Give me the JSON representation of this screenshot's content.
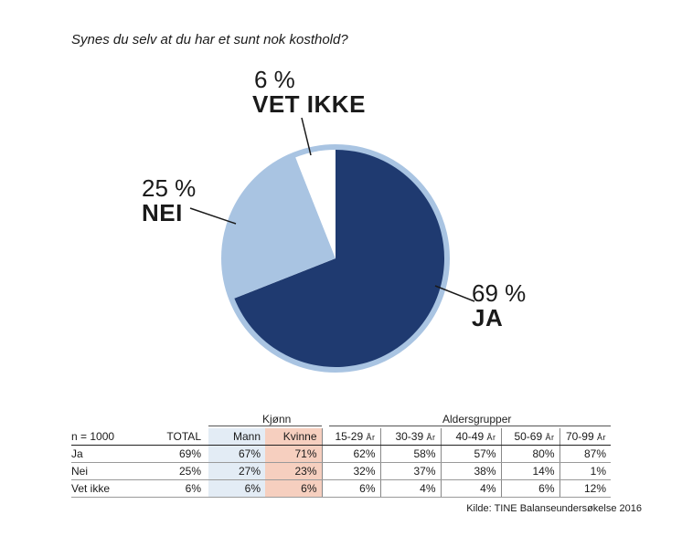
{
  "title": "Synes du selv at du har et sunt nok kosthold?",
  "chart_data": [
    {
      "type": "pie",
      "title": "Synes du selv at du har et sunt nok kosthold?",
      "slices": [
        {
          "label": "JA",
          "value": 69,
          "value_label": "69 %",
          "color": "#1f3a70"
        },
        {
          "label": "NEI",
          "value": 25,
          "value_label": "25 %",
          "color": "#a9c4e2"
        },
        {
          "label": "VET IKKE",
          "value": 6,
          "value_label": "6 %",
          "color": "#ffffff"
        }
      ],
      "ring_color": "#a9c4e2"
    },
    {
      "type": "table",
      "group_headers": {
        "gender": "Kjønn",
        "age": "Aldersgrupper"
      },
      "header": {
        "n": "n = 1000",
        "total": "TOTAL",
        "mann": "Mann",
        "kvinne": "Kvinne",
        "ages": [
          {
            "range": "15-29",
            "unit": "År"
          },
          {
            "range": "30-39",
            "unit": "År"
          },
          {
            "range": "40-49",
            "unit": "År"
          },
          {
            "range": "50-69",
            "unit": "År"
          },
          {
            "range": "70-99",
            "unit": "År"
          }
        ]
      },
      "rows": [
        {
          "label": "Ja",
          "total": "69%",
          "mann": "67%",
          "kvinne": "71%",
          "ages": [
            "62%",
            "58%",
            "57%",
            "80%",
            "87%"
          ]
        },
        {
          "label": "Nei",
          "total": "25%",
          "mann": "27%",
          "kvinne": "23%",
          "ages": [
            "32%",
            "37%",
            "38%",
            "14%",
            "1%"
          ]
        },
        {
          "label": "Vet ikke",
          "total": "6%",
          "mann": "6%",
          "kvinne": "6%",
          "ages": [
            "6%",
            "4%",
            "4%",
            "6%",
            "12%"
          ]
        }
      ]
    }
  ],
  "source": "Kilde: TINE Balanseundersøkelse 2016"
}
